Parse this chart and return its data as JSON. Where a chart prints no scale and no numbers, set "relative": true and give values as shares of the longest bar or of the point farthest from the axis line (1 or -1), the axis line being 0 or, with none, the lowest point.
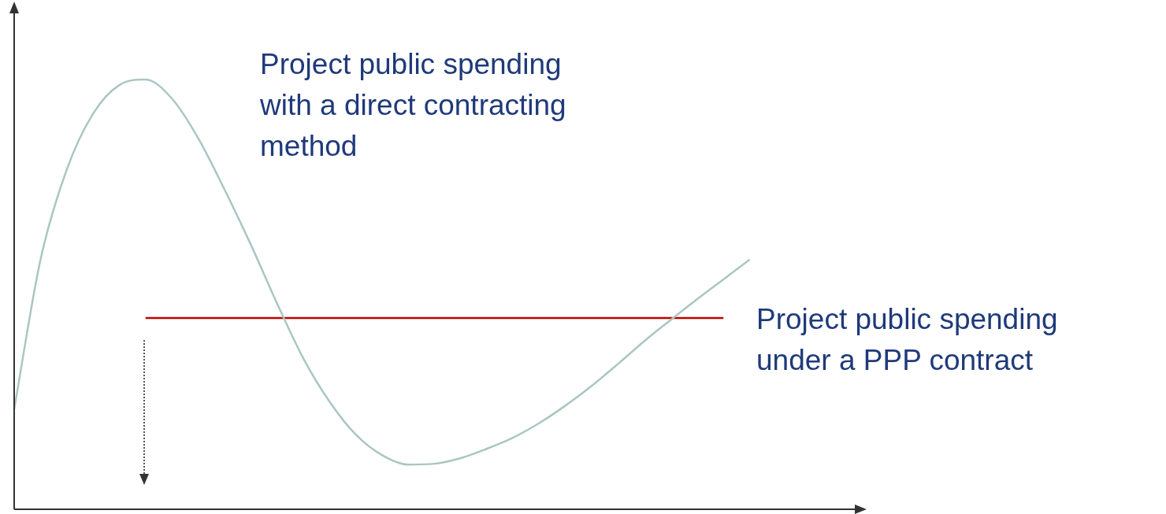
{
  "chart_data": {
    "type": "line",
    "relative": true,
    "legend": false,
    "marker": "none",
    "categories": [
      null,
      null,
      null,
      null,
      null,
      null,
      null,
      null,
      null,
      null,
      null,
      null,
      null,
      null,
      null,
      null,
      null,
      null,
      null,
      null,
      null,
      null,
      null,
      null,
      null,
      null,
      null,
      null,
      null,
      null,
      null,
      null,
      null
    ],
    "series": [
      {
        "name": "Project public spending with a direct contracting method",
        "color": "#a9c6c4",
        "values": [
          0.233,
          0.58,
          0.79,
          0.92,
          0.987,
          1.0,
          0.956,
          0.864,
          0.745,
          0.617,
          0.48,
          0.352,
          0.251,
          0.174,
          0.126,
          0.104,
          0.106,
          0.119,
          0.141,
          0.167,
          0.201,
          0.242,
          0.288,
          0.339,
          0.392,
          0.441,
          0.489,
          0.535,
          0.581,
          null,
          null,
          null,
          null
        ]
      },
      {
        "name": "Project public spending under a PPP contract",
        "color": "#c00000",
        "values": [
          null,
          null,
          null,
          null,
          null,
          0.445,
          0.445,
          0.445,
          0.445,
          0.445,
          0.445,
          0.445,
          0.445,
          0.445,
          0.445,
          0.445,
          0.445,
          0.445,
          0.445,
          0.445,
          0.445,
          0.445,
          0.445,
          0.445,
          0.445,
          0.445,
          0.445,
          0.445,
          null,
          null,
          null,
          null,
          null
        ]
      }
    ]
  }
}
